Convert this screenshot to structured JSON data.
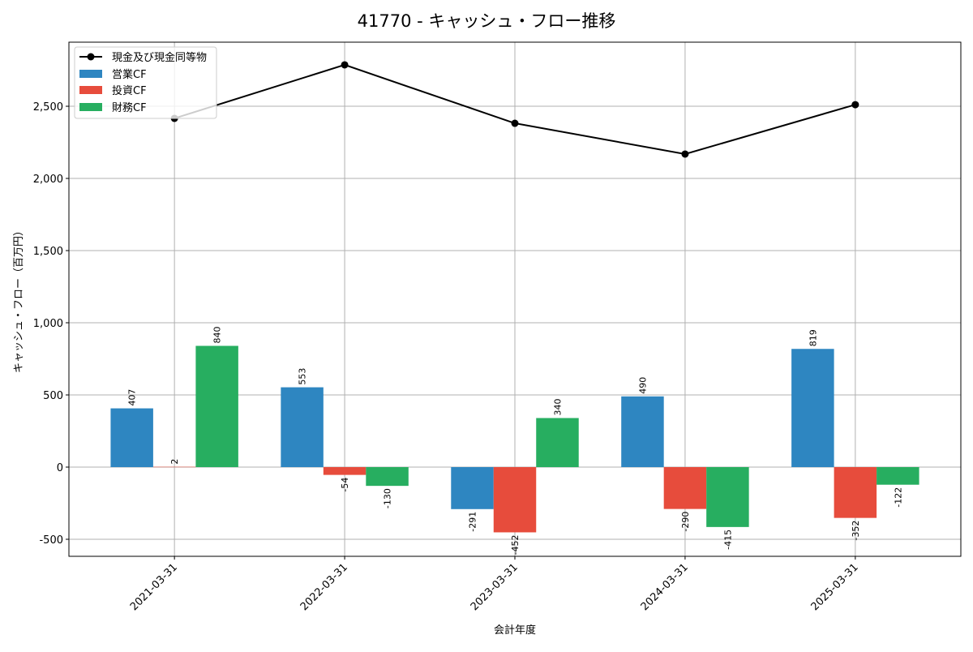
{
  "chart_data": {
    "type": "bar",
    "title": "41770 - キャッシュ・フロー推移",
    "xlabel": "会計年度",
    "ylabel": "キャッシュ・フロー（百万円）",
    "ylim": [
      -618,
      2944
    ],
    "yticks": [
      -500,
      0,
      500,
      1000,
      1500,
      2000,
      2500
    ],
    "ytick_labels": [
      "-500",
      "0",
      "500",
      "1,000",
      "1,500",
      "2,000",
      "2,500"
    ],
    "grid": true,
    "legend_position": "top-left",
    "categories": [
      "2021-03-31",
      "2022-03-31",
      "2023-03-31",
      "2024-03-31",
      "2025-03-31"
    ],
    "series": [
      {
        "name": "営業CF",
        "kind": "bar",
        "color": "#2e86c1",
        "values": [
          407,
          553,
          -291,
          490,
          819
        ],
        "labels": [
          "407",
          "553",
          "-291",
          "490",
          "819"
        ]
      },
      {
        "name": "投資CF",
        "kind": "bar",
        "color": "#e74c3c",
        "values": [
          2,
          -54,
          -452,
          -290,
          -352
        ],
        "labels": [
          "2",
          "-54",
          "-452",
          "-290",
          "-352"
        ]
      },
      {
        "name": "財務CF",
        "kind": "bar",
        "color": "#27ae60",
        "values": [
          840,
          -130,
          340,
          -415,
          -122
        ],
        "labels": [
          "840",
          "-130",
          "340",
          "-415",
          "-122"
        ]
      },
      {
        "name": "現金及び現金同等物",
        "kind": "line",
        "color": "#000000",
        "values": [
          2416,
          2787,
          2382,
          2169,
          2511
        ]
      }
    ]
  }
}
